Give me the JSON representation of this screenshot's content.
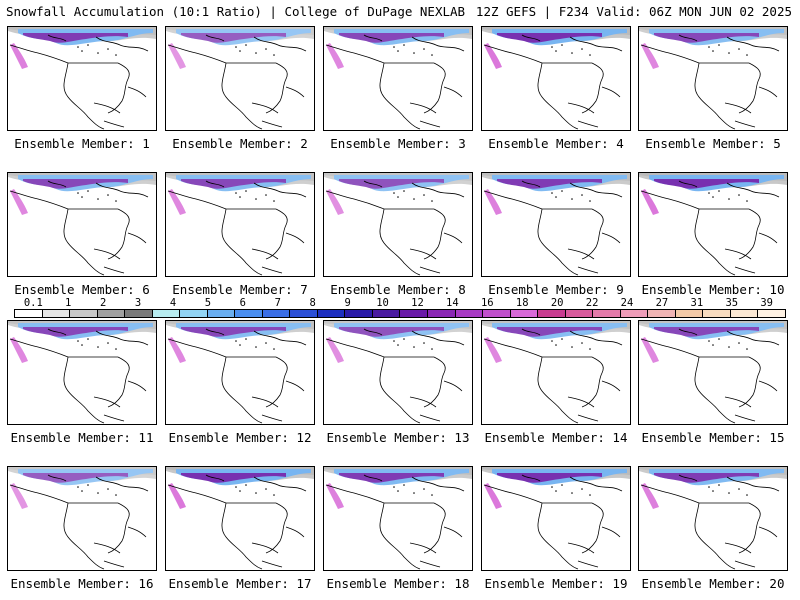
{
  "header": {
    "left_title": "Snowfall Accumulation (10:1 Ratio) | College of DuPage NEXLAB",
    "right_title": "12Z GEFS | F234 Valid: 06Z MON JUN 02 2025"
  },
  "legend": {
    "labels": [
      "0.1",
      "1",
      "2",
      "3",
      "4",
      "5",
      "6",
      "7",
      "8",
      "9",
      "10",
      "12",
      "14",
      "16",
      "18",
      "20",
      "22",
      "24",
      "27",
      "31",
      "35",
      "39"
    ],
    "colors": [
      "#ffffff",
      "#e6e6e6",
      "#c8c8c8",
      "#a0a0a0",
      "#7a7a7a",
      "#b8ecf0",
      "#92d4f4",
      "#6aaef0",
      "#4a8ef0",
      "#3a6ee6",
      "#2b4fd6",
      "#1d2fc0",
      "#2a1aa8",
      "#4a1aa0",
      "#6a1aa8",
      "#8a26b4",
      "#a83ac4",
      "#c050cc",
      "#d86ad8",
      "#c83c90",
      "#d85a9c",
      "#e47aaa",
      "#ee9cb8",
      "#f0b4b4",
      "#f4caa8",
      "#f8dcc0",
      "#fbe8d4",
      "#fff2e4"
    ]
  },
  "panels": [
    {
      "label": "Ensemble Member: 1",
      "intensity": 0.7
    },
    {
      "label": "Ensemble Member: 2",
      "intensity": 0.4
    },
    {
      "label": "Ensemble Member: 3",
      "intensity": 0.6
    },
    {
      "label": "Ensemble Member: 4",
      "intensity": 0.8
    },
    {
      "label": "Ensemble Member: 5",
      "intensity": 0.6
    },
    {
      "label": "Ensemble Member: 6",
      "intensity": 0.6
    },
    {
      "label": "Ensemble Member: 7",
      "intensity": 0.6
    },
    {
      "label": "Ensemble Member: 8",
      "intensity": 0.5
    },
    {
      "label": "Ensemble Member: 9",
      "intensity": 0.7
    },
    {
      "label": "Ensemble Member: 10",
      "intensity": 0.8
    },
    {
      "label": "Ensemble Member: 11",
      "intensity": 0.6
    },
    {
      "label": "Ensemble Member: 12",
      "intensity": 0.6
    },
    {
      "label": "Ensemble Member: 13",
      "intensity": 0.5
    },
    {
      "label": "Ensemble Member: 14",
      "intensity": 0.6
    },
    {
      "label": "Ensemble Member: 15",
      "intensity": 0.6
    },
    {
      "label": "Ensemble Member: 16",
      "intensity": 0.4
    },
    {
      "label": "Ensemble Member: 17",
      "intensity": 0.8
    },
    {
      "label": "Ensemble Member: 18",
      "intensity": 0.7
    },
    {
      "label": "Ensemble Member: 19",
      "intensity": 0.8
    },
    {
      "label": "Ensemble Member: 20",
      "intensity": 0.7
    }
  ]
}
